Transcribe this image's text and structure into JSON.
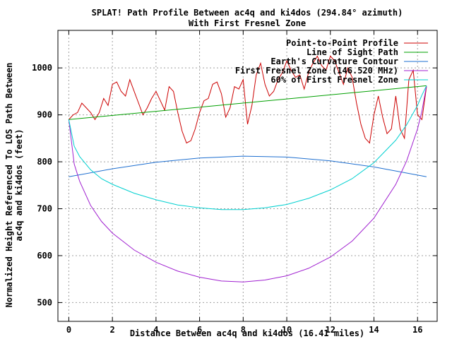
{
  "chart_data": {
    "type": "line",
    "title": "SPLAT! Path Profile Between ac4q and ki4dos (294.84° azimuth)",
    "subtitle": "With First Fresnel Zone",
    "xlabel": "Distance Between ac4q and ki4dos (16.41 miles)",
    "ylabel_line1": "Normalized Height Referenced To LOS Path Between",
    "ylabel_line2": "ac4q and ki4dos (feet)",
    "xlim": [
      -0.5,
      16.9
    ],
    "ylim": [
      460,
      1080
    ],
    "xticks": [
      0,
      2,
      4,
      6,
      8,
      10,
      12,
      14,
      16
    ],
    "yticks": [
      500,
      600,
      700,
      800,
      900,
      1000
    ],
    "grid": true,
    "legend_position": "top-right",
    "series": [
      {
        "name": "Point-to-Point Profile",
        "color": "#cc0000",
        "x": [
          0,
          0.2,
          0.4,
          0.6,
          0.8,
          1.0,
          1.2,
          1.4,
          1.6,
          1.8,
          2.0,
          2.2,
          2.4,
          2.6,
          2.8,
          3.0,
          3.2,
          3.4,
          3.6,
          3.8,
          4.0,
          4.2,
          4.4,
          4.6,
          4.8,
          5.0,
          5.2,
          5.4,
          5.6,
          5.8,
          6.0,
          6.2,
          6.4,
          6.6,
          6.8,
          7.0,
          7.2,
          7.4,
          7.6,
          7.8,
          8.0,
          8.2,
          8.4,
          8.6,
          8.8,
          9.0,
          9.2,
          9.4,
          9.6,
          9.8,
          10.0,
          10.2,
          10.4,
          10.6,
          10.8,
          11.0,
          11.2,
          11.4,
          11.6,
          11.8,
          12.0,
          12.2,
          12.4,
          12.6,
          12.8,
          13.0,
          13.2,
          13.4,
          13.6,
          13.8,
          14.0,
          14.2,
          14.4,
          14.6,
          14.8,
          15.0,
          15.2,
          15.4,
          15.6,
          15.8,
          16.0,
          16.2,
          16.41
        ],
        "values": [
          890,
          900,
          905,
          925,
          915,
          905,
          890,
          905,
          935,
          920,
          965,
          970,
          950,
          940,
          975,
          950,
          925,
          900,
          915,
          935,
          950,
          930,
          910,
          960,
          950,
          905,
          865,
          840,
          845,
          870,
          905,
          930,
          935,
          965,
          970,
          945,
          895,
          915,
          960,
          955,
          975,
          880,
          920,
          985,
          1010,
          965,
          940,
          950,
          975,
          990,
          1015,
          995,
          980,
          985,
          955,
          990,
          1010,
          1025,
          1005,
          995,
          1025,
          1015,
          990,
          965,
          1000,
          980,
          925,
          880,
          850,
          840,
          900,
          940,
          895,
          860,
          870,
          940,
          870,
          850,
          975,
          995,
          900,
          890,
          960
        ]
      },
      {
        "name": "Line of Sight Path",
        "color": "#00a000",
        "x": [
          0,
          16.41
        ],
        "values": [
          890,
          962
        ]
      },
      {
        "name": "Earth's Curvature Contour",
        "color": "#1e6fd0",
        "x": [
          0,
          2,
          4,
          6,
          8,
          10,
          12,
          14,
          16.41
        ],
        "values": [
          768,
          785,
          799,
          808,
          812,
          810,
          802,
          789,
          768
        ]
      },
      {
        "name": "First Fresnel Zone (146.520 MHz)",
        "color": "#a020d0",
        "x": [
          0,
          0.25,
          0.5,
          1,
          1.5,
          2,
          3,
          4,
          5,
          6,
          7,
          8,
          9,
          10,
          11,
          12,
          13,
          14,
          15,
          15.5,
          16,
          16.2,
          16.41
        ],
        "values": [
          890,
          795,
          758,
          707,
          673,
          648,
          612,
          586,
          567,
          554,
          546,
          544,
          548,
          557,
          573,
          597,
          631,
          680,
          752,
          802,
          870,
          908,
          962
        ]
      },
      {
        "name": "60% of First Fresnel Zone",
        "color": "#00d0d0",
        "x": [
          0,
          0.25,
          0.5,
          1,
          1.5,
          2,
          3,
          4,
          5,
          6,
          7,
          8,
          9,
          10,
          11,
          12,
          13,
          14,
          15,
          15.5,
          16,
          16.2,
          16.41
        ],
        "values": [
          890,
          833,
          811,
          783,
          764,
          752,
          733,
          719,
          708,
          702,
          698,
          698,
          702,
          709,
          722,
          740,
          764,
          798,
          846,
          879,
          920,
          942,
          962
        ]
      }
    ]
  }
}
